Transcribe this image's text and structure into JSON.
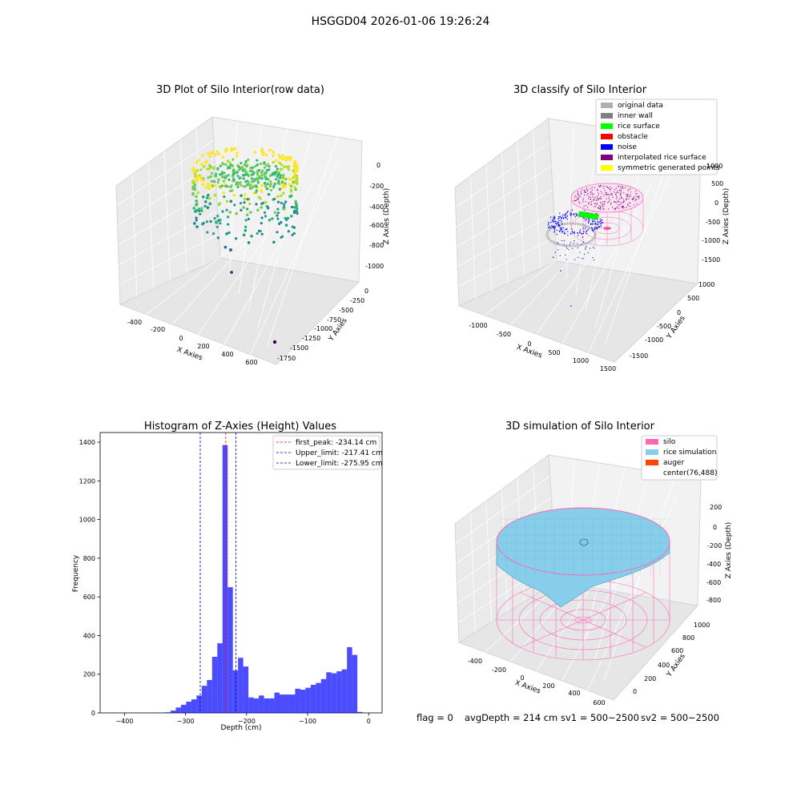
{
  "figure_title": "HSGGD04 2026-01-06 19:26:24",
  "status_line": {
    "flag": "flag = 0",
    "avg_depth": "avgDepth = 214 cm",
    "sv1": "sv1 = 500~2500",
    "sv2": "sv2 = 500~2500"
  },
  "colors": {
    "hist_bar": "#0000ff",
    "peak_line": "#ff0000",
    "limit_line": "#0000cc",
    "original_data": "#b0b0b0",
    "inner_wall": "#808080",
    "rice_surface": "#00ff00",
    "obstacle": "#ff0000",
    "noise": "#0000ff",
    "interpolated": "#800080",
    "symmetric": "#ffff00",
    "silo": "#ff69b4",
    "rice_simulation": "#87ceeb",
    "auger": "#ff4500"
  },
  "chart_data": [
    {
      "type": "scatter",
      "title": "3D Plot of Silo Interior(row data)",
      "xlabel": "X Axies",
      "ylabel": "Y Axies",
      "zlabel": "Z Axies (Depth)",
      "x_ticks": [
        "-400",
        "-200",
        "0",
        "200",
        "400",
        "600"
      ],
      "y_ticks": [
        "0",
        "-250",
        "-500",
        "-750",
        "-1000",
        "-1250",
        "-1500",
        "-1750"
      ],
      "z_ticks": [
        "0",
        "-200",
        "-400",
        "-600",
        "-800",
        "-1000"
      ],
      "outlier_points": [
        {
          "x": 600,
          "y": -1700,
          "z": -1000
        },
        {
          "x": -150,
          "y": -200,
          "z": -900
        }
      ]
    },
    {
      "type": "scatter",
      "title": "3D classify of Silo Interior",
      "xlabel": "X Axies",
      "ylabel": "Y Axies",
      "zlabel": "Z Axies (Depth)",
      "x_ticks": [
        "-1000",
        "-500",
        "0",
        "500",
        "1000",
        "1500"
      ],
      "y_ticks": [
        "1000",
        "500",
        "0",
        "-500",
        "-1000",
        "-1500"
      ],
      "z_ticks": [
        "1000",
        "500",
        "0",
        "-500",
        "-1000",
        "-1500"
      ],
      "legend": [
        "original data",
        "inner wall",
        "rice surface",
        "obstacle",
        "noise",
        "interpolated rice surface",
        "symmetric generated points"
      ]
    },
    {
      "type": "bar",
      "title": "Histogram of Z-Axies (Height) Values",
      "xlabel": "Depth (cm)",
      "ylabel": "Frequency",
      "xlim": [
        -440,
        22
      ],
      "ylim": [
        0,
        1450
      ],
      "x_ticks": [
        -400,
        -300,
        -200,
        -100,
        0
      ],
      "y_ticks": [
        0,
        200,
        400,
        600,
        800,
        1000,
        1200,
        1400
      ],
      "bin_start": -350,
      "bin_width": 8.5,
      "values": [
        1,
        2,
        3,
        12,
        28,
        42,
        58,
        70,
        90,
        140,
        170,
        290,
        360,
        1385,
        650,
        220,
        285,
        240,
        80,
        75,
        90,
        75,
        75,
        105,
        95,
        95,
        95,
        125,
        120,
        130,
        145,
        155,
        175,
        210,
        205,
        215,
        225,
        340,
        300,
        5
      ],
      "lines": [
        {
          "label": "first_peak: -234.14 cm",
          "x": -234.14,
          "style": "peak"
        },
        {
          "label": "Upper_limit: -217.41 cm",
          "x": -217.41,
          "style": "limit"
        },
        {
          "label": "Lower_limit: -275.95 cm",
          "x": -275.95,
          "style": "limit"
        }
      ],
      "legend_position": "upper right"
    },
    {
      "type": "surface",
      "title": "3D simulation of Silo Interior",
      "xlabel": "X Axies",
      "ylabel": "Y Axies",
      "zlabel": "Z Axies (Depth)",
      "x_ticks": [
        "-400",
        "-200",
        "0",
        "200",
        "400",
        "600"
      ],
      "y_ticks": [
        "0",
        "200",
        "400",
        "600",
        "800",
        "1000"
      ],
      "z_ticks": [
        "200",
        "0",
        "-200",
        "-400",
        "-600",
        "-800"
      ],
      "legend": [
        "silo",
        "rice simulation",
        "auger",
        "center(76,488)"
      ]
    }
  ]
}
